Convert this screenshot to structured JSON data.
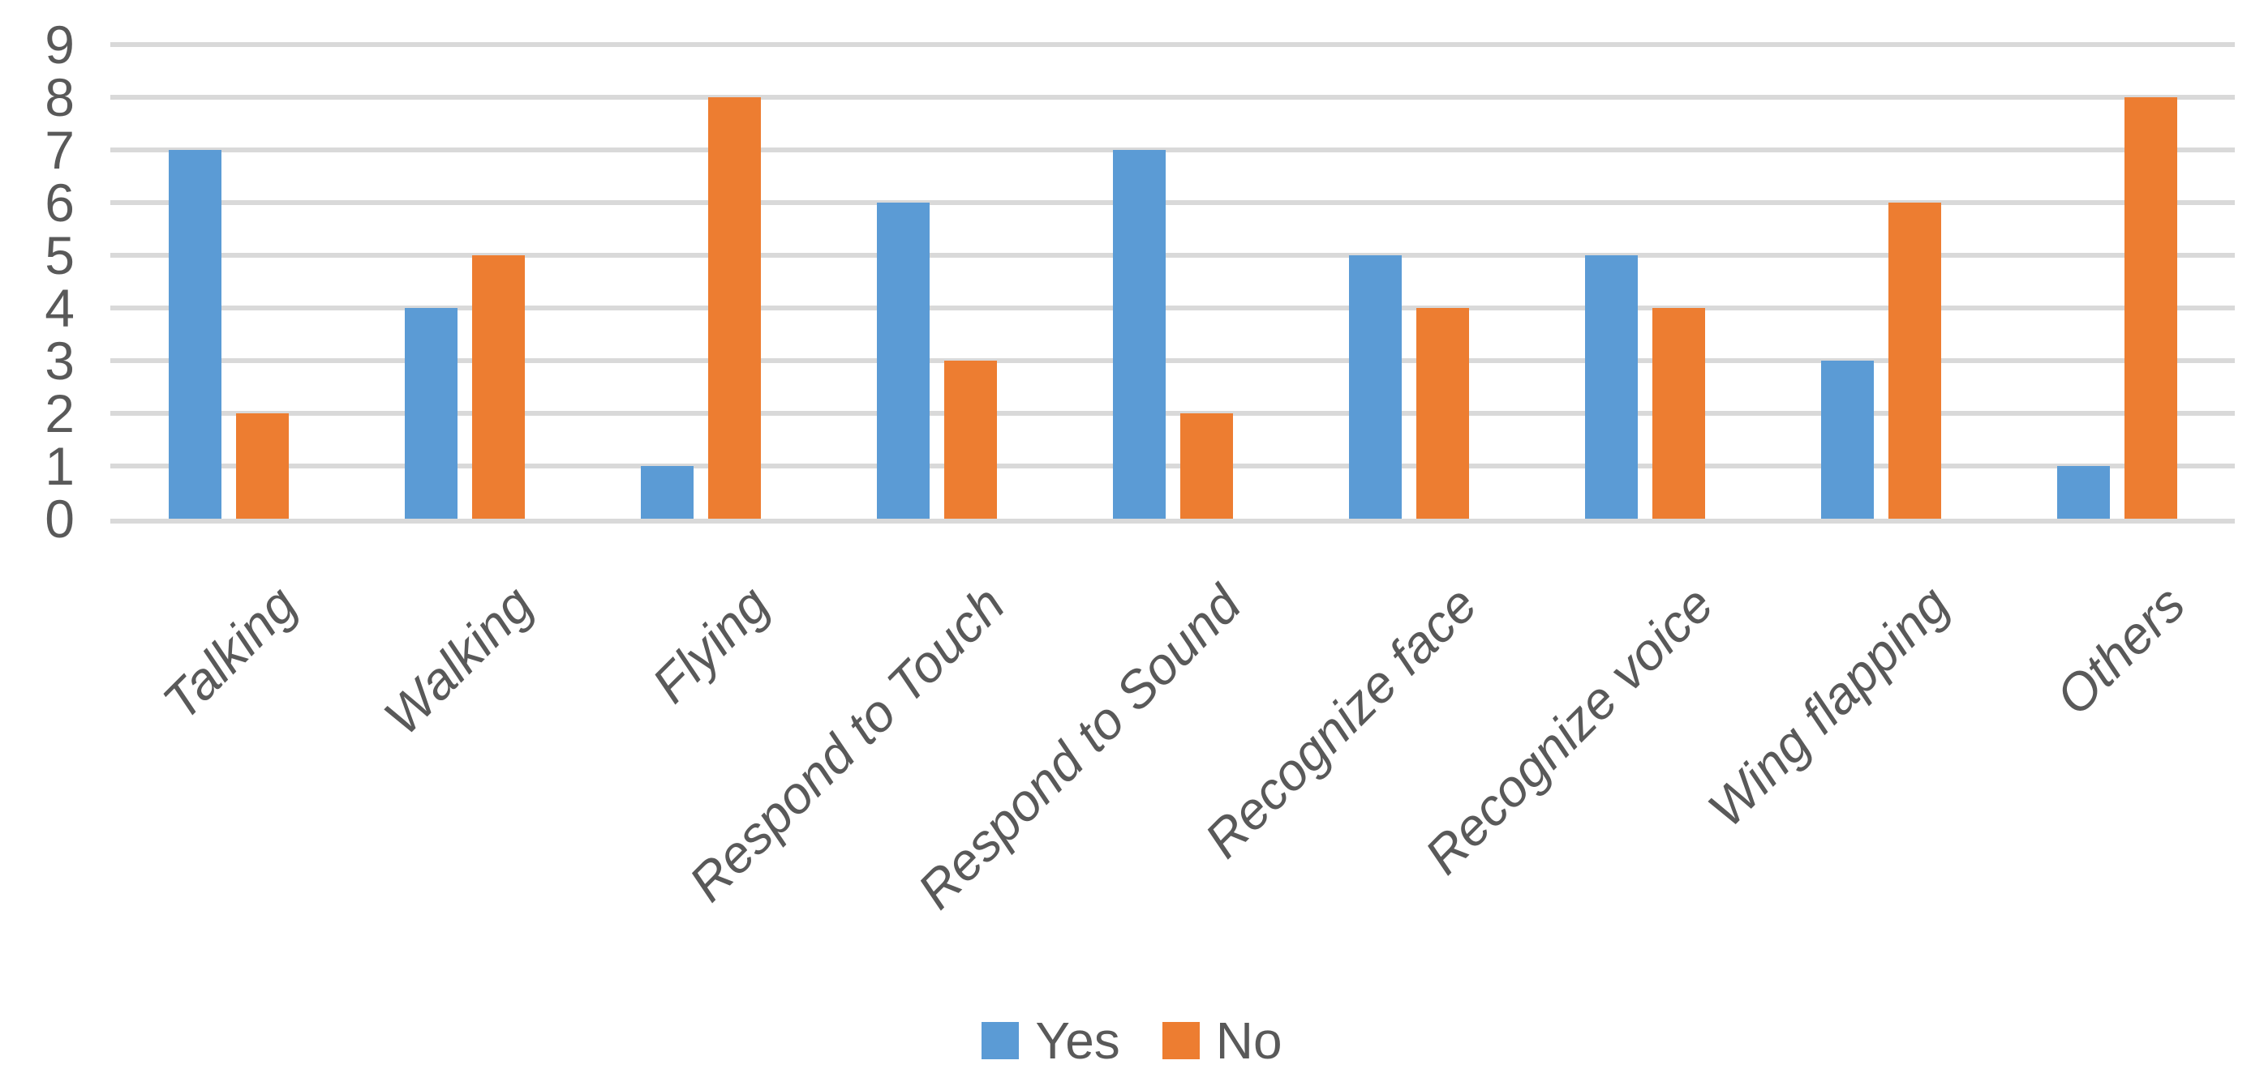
{
  "chart_data": {
    "type": "bar",
    "title": "",
    "xlabel": "",
    "ylabel": "",
    "categories": [
      "Talking",
      "Walking",
      "Flying",
      "Respond to Touch",
      "Respond to Sound",
      "Recognize face",
      "Recognize voice",
      "Wing flapping",
      "Others"
    ],
    "series": [
      {
        "name": "Yes",
        "color": "#5B9BD5",
        "values": [
          7,
          4,
          1,
          6,
          7,
          5,
          5,
          3,
          1
        ]
      },
      {
        "name": "No",
        "color": "#ED7D31",
        "values": [
          2,
          5,
          8,
          3,
          2,
          4,
          4,
          6,
          8
        ]
      }
    ],
    "ylim": [
      0,
      9
    ],
    "ytick_step": 1,
    "yticks": [
      "0",
      "1",
      "2",
      "3",
      "4",
      "5",
      "6",
      "7",
      "8",
      "9"
    ],
    "grid": {
      "visible": true,
      "orientation": "horizontal",
      "color": "#D9D9D9"
    },
    "axis_text_color": "#595959",
    "legend_position": "bottom",
    "category_label_rotation_deg": -45,
    "category_label_style": "italic"
  }
}
